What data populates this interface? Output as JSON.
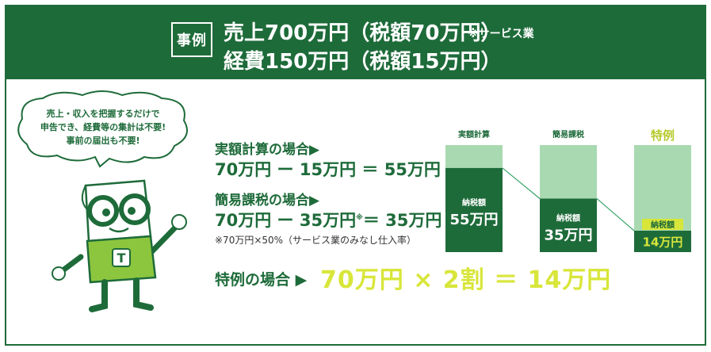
{
  "header": {
    "badge": "事例",
    "line1": "売上700万円（税額70万円）",
    "line1_note": "※サービス業",
    "line2": "経費150万円（税額15万円）"
  },
  "bubble": {
    "line1": "売上・収入を把握するだけで",
    "line2": "申告でき、経費等の集計は不要!",
    "line3": "事前の届出も不要!"
  },
  "mascot": {
    "shirt_letter": "T"
  },
  "methods": {
    "actual": {
      "label": "実額計算の場合▶",
      "formula": "70万円 ー 15万円 ＝ 55万円"
    },
    "simplified": {
      "label": "簡易課税の場合▶",
      "formula_a": "70万円 ー 35万円",
      "formula_mark": "※",
      "formula_b": "＝ 35万円",
      "note": "※70万円×50%（サービス業のみなし仕入率）"
    },
    "special": {
      "label": "特例の場合 ▶",
      "formula": "70万円 × 2割 ＝ 14万円"
    }
  },
  "chart_data": {
    "type": "bar",
    "categories": [
      "実額計算",
      "簡易課税",
      "特例"
    ],
    "total": 70,
    "values": [
      55,
      35,
      14
    ],
    "value_labels": [
      "55万円",
      "35万円",
      "14万円"
    ],
    "bar_label": "納税額",
    "colors": {
      "total": "#a8d9b0",
      "tax": "#1e6b3a",
      "highlight": "#d8e63a"
    }
  }
}
